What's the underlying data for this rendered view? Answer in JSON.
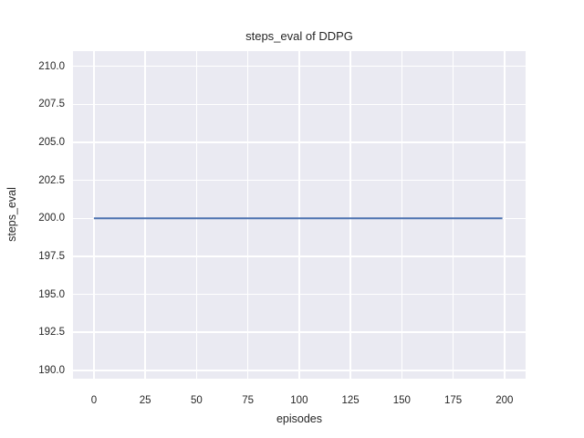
{
  "chart_data": {
    "type": "line",
    "title": "steps_eval of DDPG",
    "xlabel": "episodes",
    "ylabel": "steps_eval",
    "xlim": [
      -10.2,
      210.3
    ],
    "ylim": [
      189.45,
      211.0
    ],
    "grid": true,
    "legend_position": "none",
    "x_ticks": {
      "values": [
        0,
        25,
        50,
        75,
        100,
        125,
        150,
        175,
        200
      ],
      "labels": [
        "0",
        "25",
        "50",
        "75",
        "100",
        "125",
        "150",
        "175",
        "200"
      ]
    },
    "y_ticks": {
      "values": [
        190.0,
        192.5,
        195.0,
        197.5,
        200.0,
        202.5,
        205.0,
        207.5,
        210.0
      ],
      "labels": [
        "190.0",
        "192.5",
        "195.0",
        "197.5",
        "200.0",
        "202.5",
        "205.0",
        "207.5",
        "210.0"
      ]
    },
    "series": [
      {
        "name": "DDPG",
        "color": "#4c72b0",
        "line_width": 2,
        "x": [
          0,
          199
        ],
        "y": [
          200.0,
          200.0
        ],
        "description": "constant steps_eval value of 200 across all evaluation episodes 0-199"
      }
    ],
    "colors": {
      "figure_bg": "#ffffff",
      "plot_bg": "#eaeaf2",
      "grid": "#ffffff",
      "text": "#262626"
    }
  }
}
